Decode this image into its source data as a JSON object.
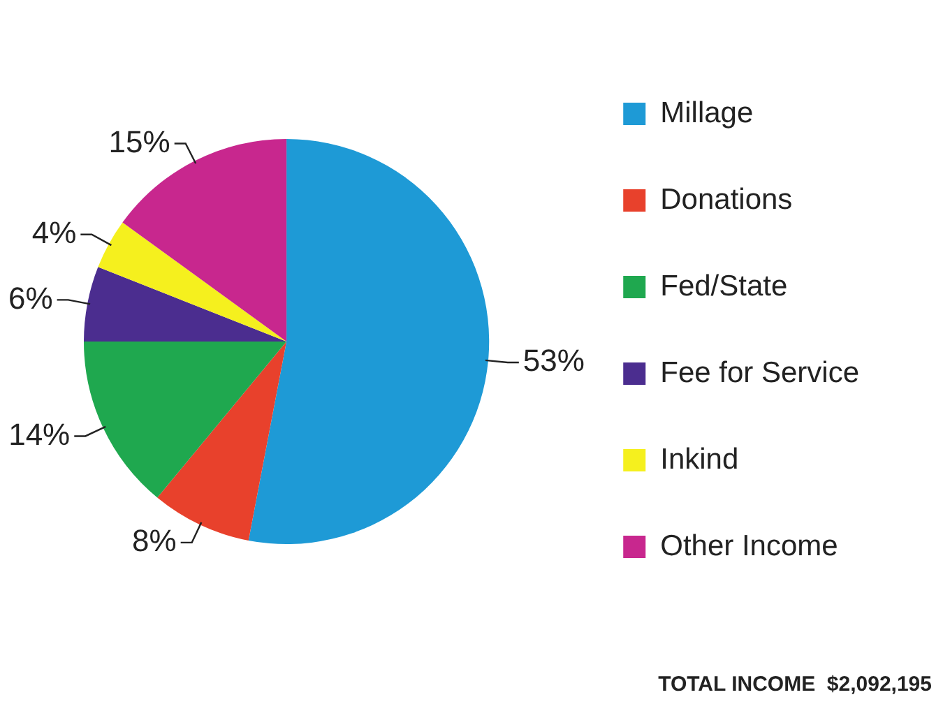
{
  "chart_data": {
    "type": "pie",
    "categories": [
      "Millage",
      "Donations",
      "Fed/State",
      "Fee for Service",
      "Inkind",
      "Other Income"
    ],
    "values": [
      53,
      8,
      14,
      6,
      4,
      15
    ],
    "colors": [
      "#1e9ad6",
      "#e8412c",
      "#1fa84f",
      "#4b2d8f",
      "#f5f01e",
      "#c8278e"
    ],
    "value_labels": [
      "53%",
      "8%",
      "14%",
      "6%",
      "4%",
      "15%"
    ],
    "legend": "right",
    "annotations": [
      "TOTAL INCOME  $2,092,195"
    ]
  }
}
